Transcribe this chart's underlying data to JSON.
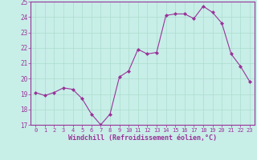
{
  "x": [
    0,
    1,
    2,
    3,
    4,
    5,
    6,
    7,
    8,
    9,
    10,
    11,
    12,
    13,
    14,
    15,
    16,
    17,
    18,
    19,
    20,
    21,
    22,
    23
  ],
  "y": [
    19.1,
    18.9,
    19.1,
    19.4,
    19.3,
    18.7,
    17.7,
    17.0,
    17.7,
    20.1,
    20.5,
    21.9,
    21.6,
    21.7,
    24.1,
    24.2,
    24.2,
    23.9,
    24.7,
    24.3,
    23.6,
    21.6,
    20.8,
    19.8
  ],
  "line_color": "#993399",
  "marker": "D",
  "marker_size": 2.0,
  "bg_color": "#c8eee8",
  "grid_color": "#aaddcc",
  "xlabel": "Windchill (Refroidissement éolien,°C)",
  "xlabel_color": "#993399",
  "tick_color": "#993399",
  "ylim": [
    17,
    25
  ],
  "xlim": [
    -0.5,
    23.5
  ],
  "yticks": [
    17,
    18,
    19,
    20,
    21,
    22,
    23,
    24,
    25
  ],
  "xticks": [
    0,
    1,
    2,
    3,
    4,
    5,
    6,
    7,
    8,
    9,
    10,
    11,
    12,
    13,
    14,
    15,
    16,
    17,
    18,
    19,
    20,
    21,
    22,
    23
  ],
  "spine_color": "#993399",
  "title_fontsize": 6,
  "xlabel_fontsize": 6,
  "tick_fontsize": 5
}
